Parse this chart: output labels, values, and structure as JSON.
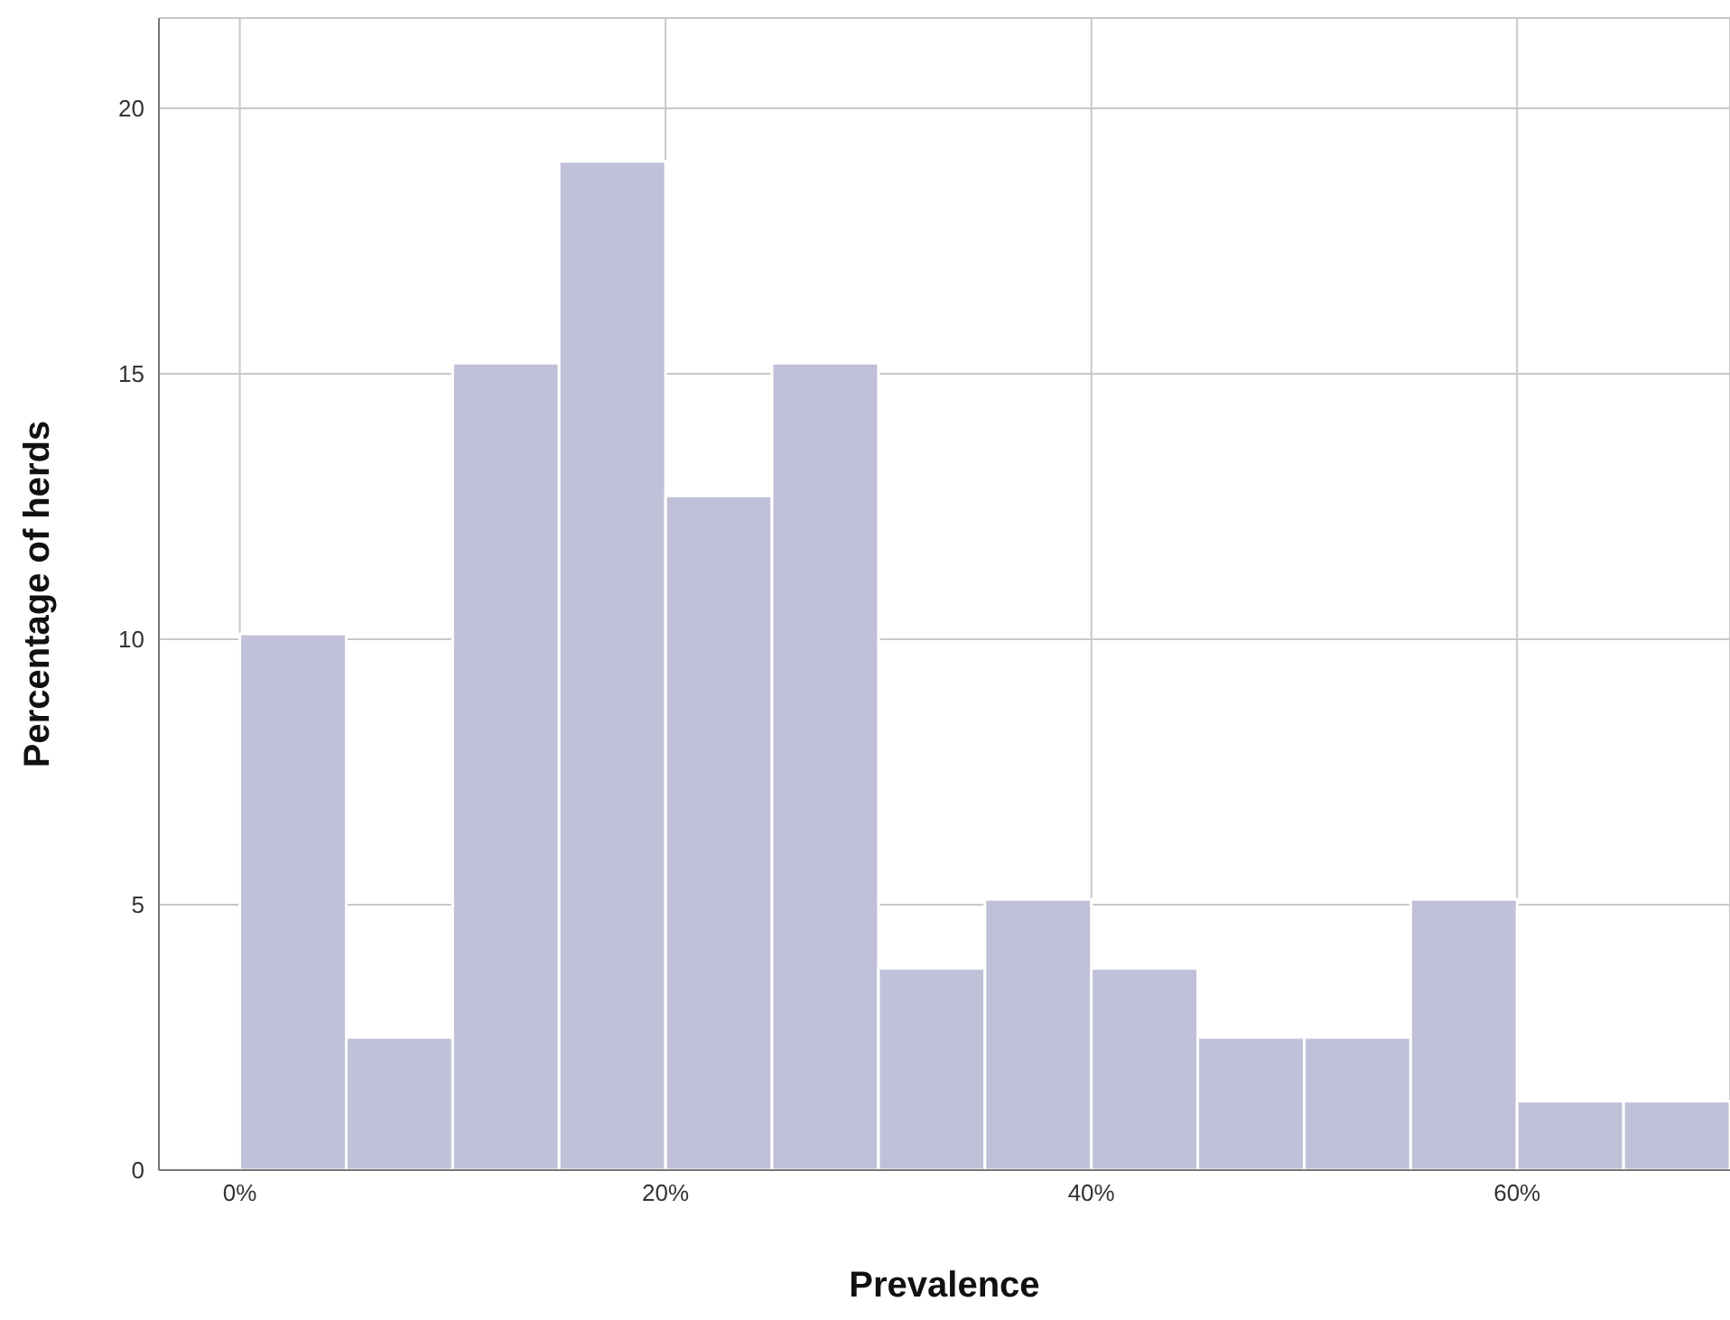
{
  "chart_data": {
    "type": "histogram",
    "xlabel": "Prevalence",
    "ylabel": "Percentage of herds",
    "bins": [
      0,
      5,
      10,
      15,
      20,
      25,
      30,
      35,
      40,
      45,
      50,
      55,
      60,
      65,
      70
    ],
    "values": [
      10.1,
      2.5,
      15.2,
      19.0,
      12.7,
      15.2,
      3.8,
      5.1,
      3.8,
      2.5,
      2.5,
      5.1,
      1.3,
      1.3
    ],
    "color": "#c0c0d8",
    "xlim": [
      -3.8,
      70
    ],
    "xticks": [
      {
        "value": 0,
        "label": "0%"
      },
      {
        "value": 20,
        "label": "20%"
      },
      {
        "value": 40,
        "label": "40%"
      },
      {
        "value": 60,
        "label": "60%"
      }
    ],
    "ylim": [
      0,
      21.7
    ],
    "yticks": [
      0,
      5,
      10,
      15,
      20
    ],
    "grid": true
  }
}
